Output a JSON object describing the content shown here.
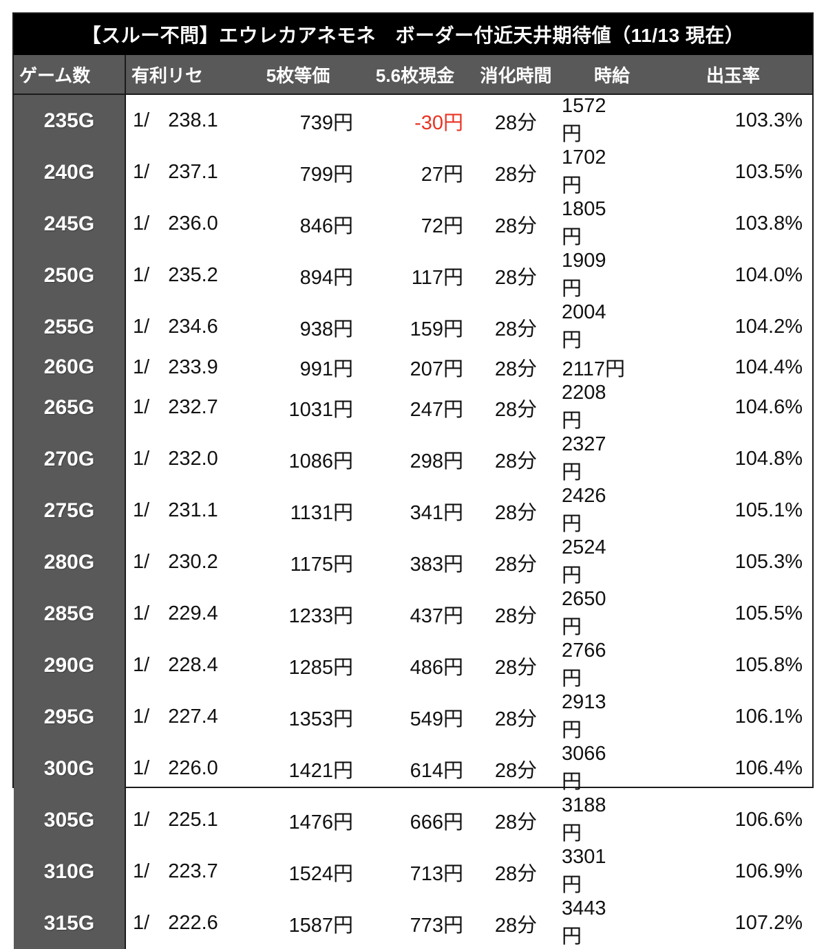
{
  "title": "【スルー不問】エウレカアネモネ　ボーダー付近天井期待値（11/13 現在）",
  "chart_data": {
    "type": "table",
    "columns": [
      "ゲーム数",
      "有利リセ",
      "5枚等価",
      "5.6枚現金",
      "消化時間",
      "時給",
      "出玉率"
    ],
    "rows": [
      {
        "games": "235G",
        "prob_prefix": "1/",
        "probability": "238.1",
        "equal_5": "739円",
        "cash_56": "-30円",
        "time": "28分",
        "hourly": "1572円",
        "payout_rate": "103.3%"
      },
      {
        "games": "240G",
        "prob_prefix": "1/",
        "probability": "237.1",
        "equal_5": "799円",
        "cash_56": "27円",
        "time": "28分",
        "hourly": "1702円",
        "payout_rate": "103.5%"
      },
      {
        "games": "245G",
        "prob_prefix": "1/",
        "probability": "236.0",
        "equal_5": "846円",
        "cash_56": "72円",
        "time": "28分",
        "hourly": "1805円",
        "payout_rate": "103.8%"
      },
      {
        "games": "250G",
        "prob_prefix": "1/",
        "probability": "235.2",
        "equal_5": "894円",
        "cash_56": "117円",
        "time": "28分",
        "hourly": "1909円",
        "payout_rate": "104.0%"
      },
      {
        "games": "255G",
        "prob_prefix": "1/",
        "probability": "234.6",
        "equal_5": "938円",
        "cash_56": "159円",
        "time": "28分",
        "hourly": "2004円",
        "payout_rate": "104.2%"
      },
      {
        "games": "260G",
        "prob_prefix": "1/",
        "probability": "233.9",
        "equal_5": "991円",
        "cash_56": "207円",
        "time": "28分",
        "hourly": "2117円",
        "payout_rate": "104.4%"
      },
      {
        "games": "265G",
        "prob_prefix": "1/",
        "probability": "232.7",
        "equal_5": "1031円",
        "cash_56": "247円",
        "time": "28分",
        "hourly": "2208円",
        "payout_rate": "104.6%"
      },
      {
        "games": "270G",
        "prob_prefix": "1/",
        "probability": "232.0",
        "equal_5": "1086円",
        "cash_56": "298円",
        "time": "28分",
        "hourly": "2327円",
        "payout_rate": "104.8%"
      },
      {
        "games": "275G",
        "prob_prefix": "1/",
        "probability": "231.1",
        "equal_5": "1131円",
        "cash_56": "341円",
        "time": "28分",
        "hourly": "2426円",
        "payout_rate": "105.1%"
      },
      {
        "games": "280G",
        "prob_prefix": "1/",
        "probability": "230.2",
        "equal_5": "1175円",
        "cash_56": "383円",
        "time": "28分",
        "hourly": "2524円",
        "payout_rate": "105.3%"
      },
      {
        "games": "285G",
        "prob_prefix": "1/",
        "probability": "229.4",
        "equal_5": "1233円",
        "cash_56": "437円",
        "time": "28分",
        "hourly": "2650円",
        "payout_rate": "105.5%"
      },
      {
        "games": "290G",
        "prob_prefix": "1/",
        "probability": "228.4",
        "equal_5": "1285円",
        "cash_56": "486円",
        "time": "28分",
        "hourly": "2766円",
        "payout_rate": "105.8%"
      },
      {
        "games": "295G",
        "prob_prefix": "1/",
        "probability": "227.4",
        "equal_5": "1353円",
        "cash_56": "549円",
        "time": "28分",
        "hourly": "2913円",
        "payout_rate": "106.1%"
      },
      {
        "games": "300G",
        "prob_prefix": "1/",
        "probability": "226.0",
        "equal_5": "1421円",
        "cash_56": "614円",
        "time": "28分",
        "hourly": "3066円",
        "payout_rate": "106.4%"
      },
      {
        "games": "305G",
        "prob_prefix": "1/",
        "probability": "225.1",
        "equal_5": "1476円",
        "cash_56": "666円",
        "time": "28分",
        "hourly": "3188円",
        "payout_rate": "106.6%"
      },
      {
        "games": "310G",
        "prob_prefix": "1/",
        "probability": "223.7",
        "equal_5": "1524円",
        "cash_56": "713円",
        "time": "28分",
        "hourly": "3301円",
        "payout_rate": "106.9%"
      },
      {
        "games": "315G",
        "prob_prefix": "1/",
        "probability": "222.6",
        "equal_5": "1587円",
        "cash_56": "773円",
        "time": "28分",
        "hourly": "3443円",
        "payout_rate": "107.2%"
      }
    ]
  },
  "colors": {
    "title_bg": "#000000",
    "title_text": "#ffffff",
    "header_bg": "#595959",
    "header_text": "#ffffff",
    "value_blue": "#2323f0",
    "negative_red": "#e93323",
    "body_text": "#111111",
    "page_bg": "#ffffff",
    "border": "#1a1a1a"
  }
}
